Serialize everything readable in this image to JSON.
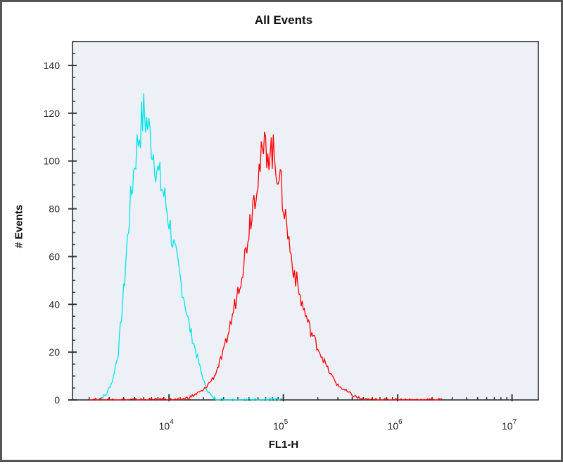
{
  "chart_data": {
    "type": "line",
    "title": "All Events",
    "xlabel": "FL1-H",
    "ylabel": "# Events",
    "x_scale": "log",
    "xlim": [
      1430,
      17000000
    ],
    "ylim": [
      0,
      150
    ],
    "x_tick_labels": [
      {
        "base": "10",
        "exp": "4",
        "value": 10000
      },
      {
        "base": "10",
        "exp": "5",
        "value": 100000
      },
      {
        "base": "10",
        "exp": "6",
        "value": 1000000
      },
      {
        "base": "10",
        "exp": "7",
        "value": 10000000
      }
    ],
    "y_ticks": [
      0,
      20,
      40,
      60,
      80,
      100,
      120,
      140
    ],
    "grid": false,
    "background": "#eef0f7",
    "series": [
      {
        "color": "#00e5e5",
        "points": [
          [
            2300,
            0
          ],
          [
            2800,
            2
          ],
          [
            3200,
            8
          ],
          [
            3600,
            20
          ],
          [
            4000,
            45
          ],
          [
            4500,
            78
          ],
          [
            5000,
            100
          ],
          [
            5500,
            112
          ],
          [
            6000,
            120
          ],
          [
            6500,
            115
          ],
          [
            7000,
            108
          ],
          [
            8000,
            95
          ],
          [
            9000,
            86
          ],
          [
            10000,
            75
          ],
          [
            11000,
            64
          ],
          [
            12000,
            55
          ],
          [
            13000,
            47
          ],
          [
            14000,
            39
          ],
          [
            15000,
            31
          ],
          [
            17000,
            21
          ],
          [
            19000,
            12
          ],
          [
            21000,
            5
          ],
          [
            24000,
            1
          ],
          [
            28000,
            0
          ],
          [
            100000,
            0
          ]
        ]
      },
      {
        "color": "#ff0000",
        "points": [
          [
            2000,
            0
          ],
          [
            12000,
            0
          ],
          [
            15000,
            1
          ],
          [
            20000,
            4
          ],
          [
            25000,
            10
          ],
          [
            30000,
            20
          ],
          [
            35000,
            33
          ],
          [
            40000,
            46
          ],
          [
            46000,
            60
          ],
          [
            52000,
            78
          ],
          [
            60000,
            95
          ],
          [
            70000,
            106
          ],
          [
            80000,
            104
          ],
          [
            90000,
            96
          ],
          [
            100000,
            83
          ],
          [
            117000,
            60
          ],
          [
            140000,
            43
          ],
          [
            170000,
            30
          ],
          [
            200000,
            22
          ],
          [
            250000,
            12
          ],
          [
            300000,
            6
          ],
          [
            400000,
            2
          ],
          [
            500000,
            0
          ],
          [
            2500000,
            0
          ]
        ]
      }
    ]
  }
}
